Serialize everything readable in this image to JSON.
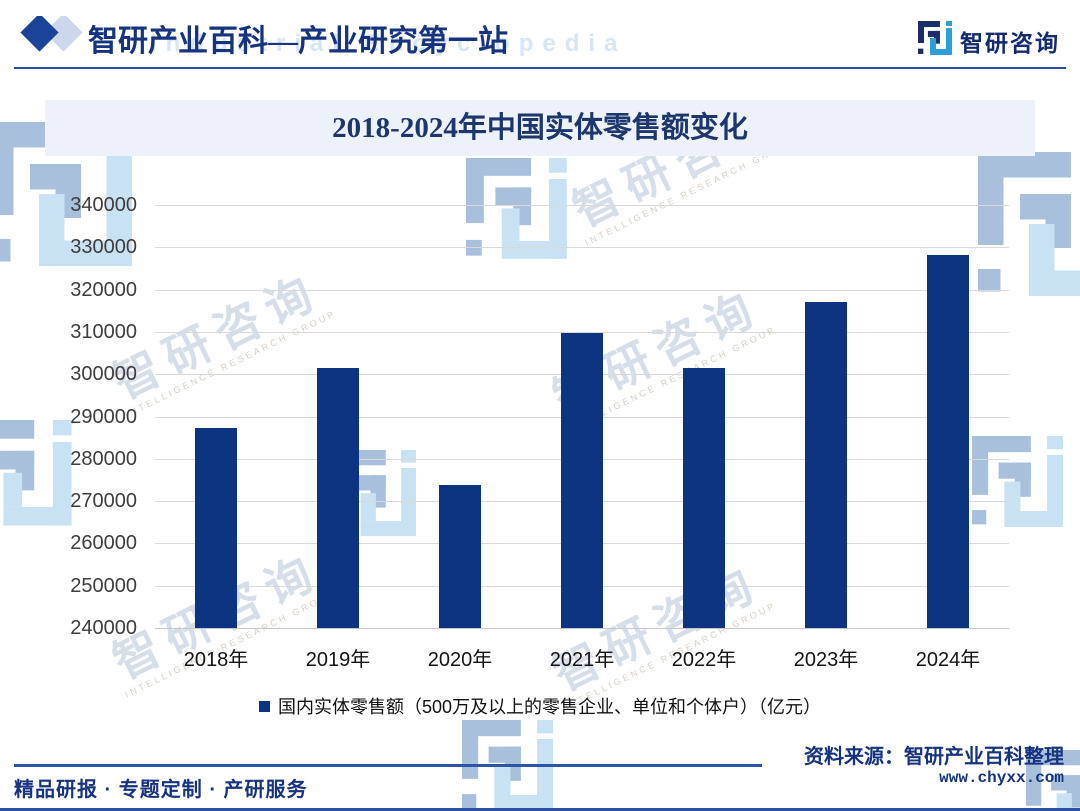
{
  "header": {
    "title": "智研产业百科—产业研究第一站",
    "logo_text": "智研咨询"
  },
  "chart_data": {
    "type": "bar",
    "title": "2018-2024年中国实体零售额变化",
    "categories": [
      "2018年",
      "2019年",
      "2020年",
      "2021年",
      "2022年",
      "2023年",
      "2024年"
    ],
    "values": [
      287200,
      301500,
      273900,
      309700,
      301500,
      317000,
      328200
    ],
    "legend": "国内实体零售额（500万及以上的零售企业、单位和个体户）（亿元）",
    "ylim": [
      240000,
      340000
    ],
    "ytick_step": 10000,
    "yticks": [
      240000,
      250000,
      260000,
      270000,
      280000,
      290000,
      300000,
      310000,
      320000,
      330000,
      340000
    ],
    "grid": true,
    "legend_position": "bottom",
    "bar_color": "#0d3480"
  },
  "footer": {
    "services": "精品研报 · 专题定制 · 产研服务",
    "source": "资料来源：智研产业百科整理",
    "website": "www.chyxx.com"
  },
  "watermark": {
    "cn": "智研咨询",
    "en": "INTELLIGENCE RESEARCH GROUP",
    "latin": "Industrial Encyclopedia"
  },
  "colors": {
    "accent_navy": "#16337f",
    "rule_blue": "#2b50a1",
    "band_bg": "#ecf1fa",
    "grid": "#d9d9d9",
    "logo_dark": "#1b2e6b",
    "logo_cyan": "#2d9fd6"
  }
}
